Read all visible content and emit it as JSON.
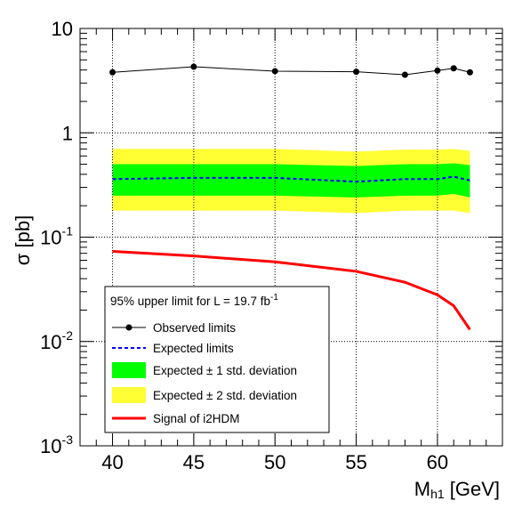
{
  "chart_data": {
    "type": "line",
    "xlabel": "M",
    "xlabel_sub": "h1",
    "xlabel_unit": " [GeV]",
    "ylabel": "σ [pb]",
    "xlim": [
      38,
      64
    ],
    "ylim": [
      0.001,
      10
    ],
    "yscale": "log",
    "grid": true,
    "x_ticks": [
      {
        "value": 40,
        "label": "40"
      },
      {
        "value": 45,
        "label": "45"
      },
      {
        "value": 50,
        "label": "50"
      },
      {
        "value": 55,
        "label": "55"
      },
      {
        "value": 60,
        "label": "60"
      }
    ],
    "y_ticks": [
      {
        "value": 10,
        "base": "10",
        "exp": ""
      },
      {
        "value": 1,
        "base": "1",
        "exp": ""
      },
      {
        "value": 0.1,
        "base": "10",
        "exp": "-1"
      },
      {
        "value": 0.01,
        "base": "10",
        "exp": "-2"
      },
      {
        "value": 0.001,
        "base": "10",
        "exp": "-3"
      }
    ],
    "x": [
      40,
      45,
      50,
      55,
      58,
      60,
      61,
      62
    ],
    "series": [
      {
        "name": "Observed limits",
        "style": "line-markers",
        "color": "#000000",
        "values": [
          3.8,
          4.3,
          3.9,
          3.85,
          3.6,
          3.95,
          4.15,
          3.8
        ]
      },
      {
        "name": "Expected limits",
        "style": "dashed",
        "color": "#0000ff",
        "values": [
          0.36,
          0.37,
          0.37,
          0.34,
          0.36,
          0.36,
          0.38,
          0.35
        ]
      },
      {
        "name": "Signal of i2HDM",
        "style": "line",
        "color": "#ff0000",
        "values": [
          0.073,
          0.066,
          0.058,
          0.047,
          0.037,
          0.028,
          0.022,
          0.013
        ]
      }
    ],
    "bands": [
      {
        "name": "Expected ± 2 std. deviation",
        "color": "#ffff33",
        "low": [
          0.18,
          0.18,
          0.18,
          0.17,
          0.18,
          0.18,
          0.18,
          0.17
        ],
        "high": [
          0.7,
          0.7,
          0.7,
          0.66,
          0.69,
          0.69,
          0.7,
          0.67
        ]
      },
      {
        "name": "Expected ± 1 std. deviation",
        "color": "#00ff00",
        "low": [
          0.25,
          0.25,
          0.25,
          0.24,
          0.25,
          0.25,
          0.26,
          0.24
        ],
        "high": [
          0.5,
          0.5,
          0.5,
          0.48,
          0.5,
          0.5,
          0.51,
          0.49
        ]
      }
    ],
    "legend": {
      "position": "bottom-left",
      "header_main": "95% upper limit for L = 19.7 fb",
      "header_exp": "-1",
      "entries": [
        {
          "label": "Observed limits",
          "kind": "markerline",
          "color": "#000000"
        },
        {
          "label": "Expected limits",
          "kind": "dashed",
          "color": "#0000ff"
        },
        {
          "label": "Expected ± 1 std. deviation",
          "kind": "fill",
          "color": "#00ff00"
        },
        {
          "label": "Expected ± 2 std. deviation",
          "kind": "fill",
          "color": "#ffff33"
        },
        {
          "label": "Signal of i2HDM",
          "kind": "line",
          "color": "#ff0000"
        }
      ]
    }
  }
}
